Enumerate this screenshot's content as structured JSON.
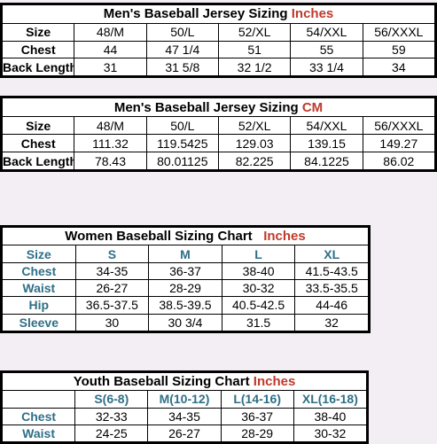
{
  "men_inches": {
    "title": "Men's Baseball Jersey Sizing",
    "unit": "Inches",
    "header": [
      "Size",
      "48/M",
      "50/L",
      "52/XL",
      "54/XXL",
      "56/XXXL"
    ],
    "rows": [
      [
        "Chest",
        "44",
        "47 1/4",
        "51",
        "55",
        "59"
      ],
      [
        "Back Length",
        "31",
        "31 5/8",
        "32 1/2",
        "33 1/4",
        "34"
      ]
    ]
  },
  "men_cm": {
    "title": "Men's Baseball Jersey Sizing",
    "unit": "CM",
    "header": [
      "Size",
      "48/M",
      "50/L",
      "52/XL",
      "54/XXL",
      "56/XXXL"
    ],
    "rows": [
      [
        "Chest",
        "111.32",
        "119.5425",
        "129.03",
        "139.15",
        "149.27"
      ],
      [
        "Back Length",
        "78.43",
        "80.01125",
        "82.225",
        "84.1225",
        "86.02"
      ]
    ]
  },
  "women": {
    "title": "Women Baseball Sizing Chart",
    "unit": "Inches",
    "header": [
      "Size",
      "S",
      "M",
      "L",
      "XL"
    ],
    "rows": [
      [
        "Chest",
        "34-35",
        "36-37",
        "38-40",
        "41.5-43.5"
      ],
      [
        "Waist",
        "26-27",
        "28-29",
        "30-32",
        "33.5-35.5"
      ],
      [
        "Hip",
        "36.5-37.5",
        "38.5-39.5",
        "40.5-42.5",
        "44-46"
      ],
      [
        "Sleeve",
        "30",
        "30 3/4",
        "31.5",
        "32"
      ]
    ]
  },
  "youth": {
    "title": "Youth Baseball Sizing Chart",
    "unit": "Inches",
    "header": [
      "",
      "S(6-8)",
      "M(10-12)",
      "L(14-16)",
      "XL(16-18)"
    ],
    "rows": [
      [
        "Chest",
        "32-33",
        "34-35",
        "36-37",
        "38-40"
      ],
      [
        "Waist",
        "24-25",
        "26-27",
        "28-29",
        "30-32"
      ]
    ]
  },
  "colors": {
    "unit_red": "#c0392b",
    "label_blue": "#2f6f86",
    "background": "#f3eef3"
  }
}
